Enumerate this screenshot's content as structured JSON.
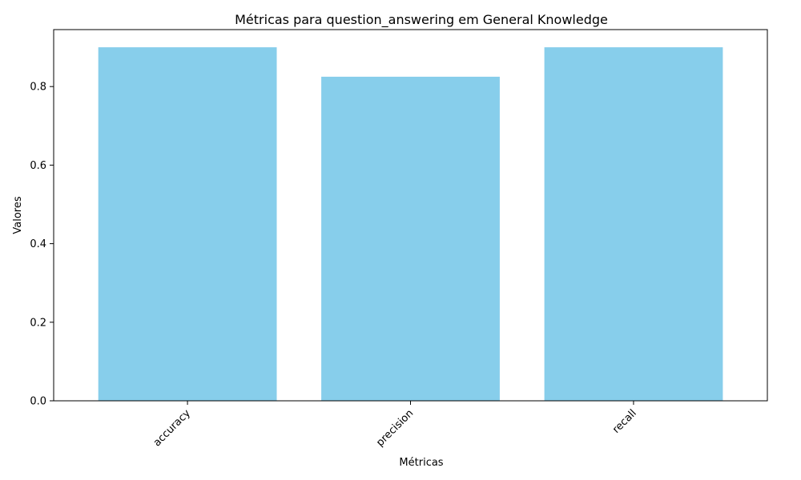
{
  "chart_data": {
    "type": "bar",
    "title": "Métricas para question_answering em General Knowledge",
    "xlabel": "Métricas",
    "ylabel": "Valores",
    "categories": [
      "accuracy",
      "precision",
      "recall"
    ],
    "values": [
      0.9,
      0.825,
      0.9
    ],
    "ylim": [
      0,
      0.945
    ],
    "yticks": [
      "0.0",
      "0.2",
      "0.4",
      "0.6",
      "0.8"
    ],
    "bar_color": "#87CEEB",
    "grid": false,
    "legend": "none"
  }
}
